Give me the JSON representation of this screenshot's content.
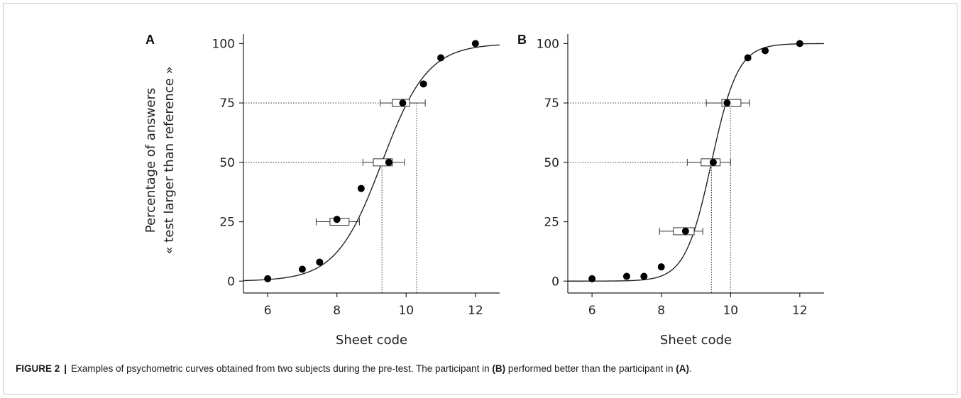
{
  "caption": {
    "label": "FIGURE 2",
    "separator": "|",
    "text_before": "Examples of psychometric curves obtained from two subjects during the pre-test. The participant in ",
    "ref_b": "(B)",
    "text_middle": " performed better than the participant in ",
    "ref_a": "(A)",
    "text_after": "."
  },
  "ylabel_line1": "Percentage of answers",
  "ylabel_line2": "« test larger than reference »",
  "chart_data": [
    {
      "type": "scatter",
      "panel": "A",
      "xlabel": "Sheet code",
      "xlim": [
        5.3,
        12.7
      ],
      "ylim": [
        -5,
        104
      ],
      "xticks": [
        6,
        8,
        10,
        12
      ],
      "yticks": [
        0,
        25,
        50,
        75,
        100
      ],
      "grid": false,
      "points": {
        "x": [
          6,
          7,
          7.5,
          8,
          8.7,
          9.5,
          9.9,
          10.5,
          11,
          12
        ],
        "y": [
          1,
          5,
          8,
          26,
          39,
          50,
          75,
          83,
          94,
          100
        ]
      },
      "fit_curve": {
        "type": "logistic",
        "mu": 9.3,
        "s": 0.66
      },
      "thresholds": [
        {
          "y": 75,
          "box_low": 9.6,
          "box_high": 10.1,
          "whisker_low": 9.25,
          "whisker_high": 10.55,
          "x_guide": 10.3
        },
        {
          "y": 50,
          "box_low": 9.05,
          "box_high": 9.6,
          "whisker_low": 8.75,
          "whisker_high": 9.95,
          "x_guide": 9.3
        },
        {
          "y": 25,
          "box_low": 7.8,
          "box_high": 8.35,
          "whisker_low": 7.4,
          "whisker_high": 8.65,
          "x_guide": null
        }
      ]
    },
    {
      "type": "scatter",
      "panel": "B",
      "xlabel": "Sheet code",
      "xlim": [
        5.3,
        12.7
      ],
      "ylim": [
        -5,
        104
      ],
      "xticks": [
        6,
        8,
        10,
        12
      ],
      "yticks": [
        0,
        25,
        50,
        75,
        100
      ],
      "grid": false,
      "points": {
        "x": [
          6,
          7,
          7.5,
          8,
          8.7,
          9.5,
          9.9,
          10.5,
          11,
          12
        ],
        "y": [
          1,
          2,
          2,
          6,
          21,
          50,
          75,
          94,
          97,
          100
        ]
      },
      "fit_curve": {
        "type": "logistic",
        "mu": 9.45,
        "s": 0.38
      },
      "thresholds": [
        {
          "y": 75,
          "box_low": 9.75,
          "box_high": 10.3,
          "whisker_low": 9.3,
          "whisker_high": 10.55,
          "x_guide": 10
        },
        {
          "y": 50,
          "box_low": 9.15,
          "box_high": 9.7,
          "whisker_low": 8.75,
          "whisker_high": 10.0,
          "x_guide": 9.45
        },
        {
          "y": 21,
          "box_low": 8.35,
          "box_high": 8.95,
          "whisker_low": 7.95,
          "whisker_high": 9.2,
          "x_guide": null
        }
      ]
    }
  ]
}
